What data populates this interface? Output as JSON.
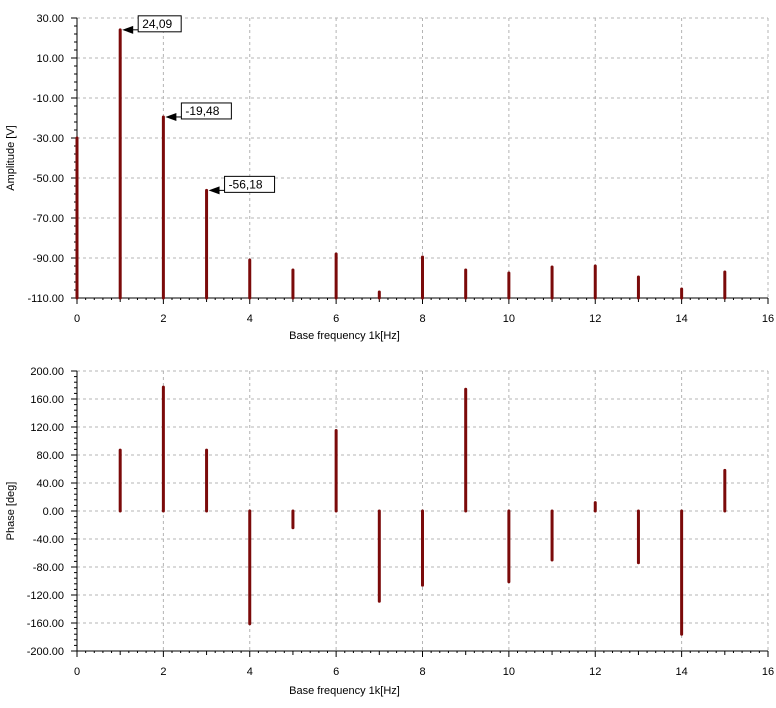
{
  "colors": {
    "bar": "#7b0a0a",
    "grid": "#b4b4b4",
    "axis": "#000000"
  },
  "chart_data": [
    {
      "type": "bar",
      "xlabel": "Base frequency 1k[Hz]",
      "ylabel": "Amplitude [V]",
      "xlim": [
        0,
        16
      ],
      "ylim": [
        -110,
        30
      ],
      "x_ticks": [
        0,
        2,
        4,
        6,
        8,
        10,
        12,
        14,
        16
      ],
      "x_tick_labels": [
        "0",
        "2",
        "4",
        "6",
        "8",
        "10",
        "12",
        "14",
        "16"
      ],
      "y_ticks": [
        30,
        10,
        -10,
        -30,
        -50,
        -70,
        -90,
        -110
      ],
      "y_tick_labels": [
        "30.00",
        "10.00",
        "-10.00",
        "-30.00",
        "-50.00",
        "-70.00",
        "-90.00",
        "-110.00"
      ],
      "grid": true,
      "baseline": -110,
      "x": [
        0,
        1,
        2,
        3,
        4,
        5,
        6,
        7,
        8,
        9,
        10,
        11,
        12,
        13,
        14,
        15
      ],
      "values": [
        -30,
        24.09,
        -19.48,
        -56.18,
        -91,
        -96,
        -88,
        -107,
        -89.5,
        -96,
        -97.5,
        -94.5,
        -94,
        -99.5,
        -105.5,
        -97
      ],
      "annotations": [
        {
          "x": 1,
          "y": 24.09,
          "text": "24,09"
        },
        {
          "x": 2,
          "y": -19.48,
          "text": "-19,48"
        },
        {
          "x": 3,
          "y": -56.18,
          "text": "-56,18"
        }
      ]
    },
    {
      "type": "bar",
      "xlabel": "Base frequency 1k[Hz]",
      "ylabel": "Phase [deg]",
      "xlim": [
        0,
        16
      ],
      "ylim": [
        -200,
        200
      ],
      "x_ticks": [
        0,
        2,
        4,
        6,
        8,
        10,
        12,
        14,
        16
      ],
      "x_tick_labels": [
        "0",
        "2",
        "4",
        "6",
        "8",
        "10",
        "12",
        "14",
        "16"
      ],
      "y_ticks": [
        200,
        160,
        120,
        80,
        40,
        0,
        -40,
        -80,
        -120,
        -160,
        -200
      ],
      "y_tick_labels": [
        "200.00",
        "160.00",
        "120.00",
        "80.00",
        "40.00",
        "0.00",
        "-40.00",
        "-80.00",
        "-120.00",
        "-160.00",
        "-200.00"
      ],
      "grid": true,
      "baseline": 0,
      "x": [
        1,
        2,
        3,
        4,
        5,
        6,
        7,
        8,
        9,
        10,
        11,
        12,
        13,
        14,
        15
      ],
      "values": [
        87,
        177,
        87,
        -161,
        -24,
        115,
        -129,
        -106,
        174,
        -101,
        -70,
        12,
        -74,
        -176,
        58
      ],
      "annotations": []
    }
  ]
}
